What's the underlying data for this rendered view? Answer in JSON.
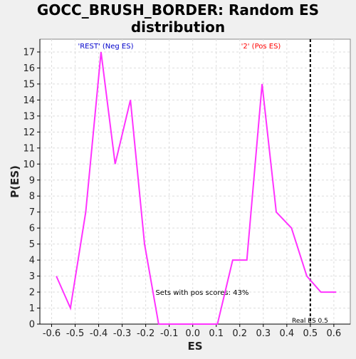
{
  "chart_data": {
    "type": "line",
    "title_lines": [
      "GOCC_BRUSH_BORDER: Random ES",
      "distribution"
    ],
    "xlabel": "ES",
    "ylabel": "P(ES)",
    "xlim": [
      -0.65,
      0.67
    ],
    "ylim": [
      0,
      17.8
    ],
    "xticks": [
      -0.6,
      -0.5,
      -0.4,
      -0.3,
      -0.2,
      -0.1,
      0.0,
      0.1,
      0.2,
      0.3,
      0.4,
      0.5,
      0.6
    ],
    "xtick_labels": [
      "-0.6",
      "-0.5",
      "-0.4",
      "-0.3",
      "-0.2",
      "-0.1",
      "0.0",
      "0.1",
      "0.2",
      "0.3",
      "0.4",
      "0.5",
      "0.6"
    ],
    "yticks": [
      0,
      1,
      2,
      3,
      4,
      5,
      6,
      7,
      8,
      9,
      10,
      11,
      12,
      13,
      14,
      15,
      16,
      17
    ],
    "ytick_labels": [
      "0",
      "1",
      "2",
      "3",
      "4",
      "5",
      "6",
      "7",
      "8",
      "9",
      "10",
      "11",
      "12",
      "13",
      "14",
      "15",
      "16",
      "17"
    ],
    "grid": true,
    "series": [
      {
        "color": "#ff33ff",
        "x": [
          -0.58,
          -0.52,
          -0.455,
          -0.39,
          -0.33,
          -0.265,
          -0.205,
          -0.145,
          -0.08,
          -0.02,
          0.045,
          0.105,
          0.17,
          0.23,
          0.295,
          0.355,
          0.42,
          0.485,
          0.545,
          0.61
        ],
        "y": [
          3,
          1,
          7,
          17,
          10,
          14,
          5,
          0,
          0,
          0,
          0,
          0,
          4,
          4,
          15,
          7,
          6,
          3,
          2,
          2
        ]
      }
    ],
    "real_es": {
      "value": 0.5,
      "label": "Real ES 0.5",
      "color": "#000000"
    },
    "annotations": [
      {
        "text": "'REST' (Neg ES)",
        "color": "#0000cc",
        "anchor": "neg"
      },
      {
        "text": "'2' (Pos ES)",
        "color": "#ff0000",
        "anchor": "pos"
      },
      {
        "text": "Sets with pos scores: 43%",
        "color": "#000000",
        "anchor": "center"
      }
    ],
    "colors": {
      "plot_background": "#ffffff",
      "page_background": "#f0f0f0",
      "grid": "#dddddd",
      "axis": "#000000"
    }
  }
}
